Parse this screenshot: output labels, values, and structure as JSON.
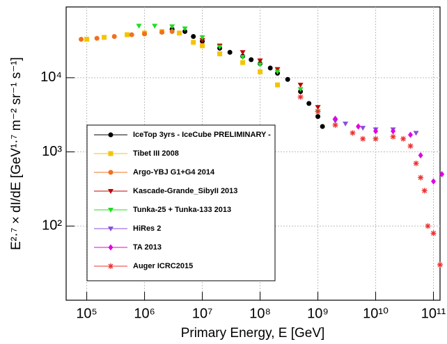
{
  "chart_data": {
    "type": "scatter",
    "x_label": "Primary Energy, E [GeV]",
    "y_label": "E²·⁷ × dI/dE [GeV¹·⁷ m⁻² sr⁻¹ s⁻¹]",
    "log_x": true,
    "log_y": true,
    "grid": true,
    "legend": "lower left",
    "xlim": [
      44000,
      130000000000
    ],
    "ylim": [
      10,
      90000
    ],
    "xticks": [
      {
        "value": 100000,
        "label": "10⁵"
      },
      {
        "value": 1000000,
        "label": "10⁶"
      },
      {
        "value": 10000000,
        "label": "10⁷"
      },
      {
        "value": 100000000,
        "label": "10⁸"
      },
      {
        "value": 1000000000,
        "label": "10⁹"
      },
      {
        "value": 10000000000,
        "label": "10¹⁰"
      },
      {
        "value": 100000000000,
        "label": "10¹¹"
      }
    ],
    "yticks": [
      {
        "value": 100,
        "label": "10²"
      },
      {
        "value": 1000,
        "label": "10³"
      },
      {
        "value": 10000,
        "label": "10⁴"
      }
    ],
    "series": [
      {
        "name": "IceTop 3yrs  - IceCube PRELIMINARY -",
        "color": "#000000",
        "marker": "circle",
        "x": [
          3000000,
          5000000,
          7000000,
          10000000,
          20000000,
          30000000,
          50000000,
          70000000,
          100000000,
          150000000,
          200000000,
          300000000,
          500000000,
          700000000,
          1000000000,
          1200000000
        ],
        "y": [
          45000,
          42000,
          36000,
          31000,
          25000,
          22000,
          19500,
          17500,
          15500,
          13500,
          11500,
          9500,
          6500,
          4500,
          3000,
          2200
        ]
      },
      {
        "name": "Tibet III 2008",
        "color": "#f5c400",
        "marker": "square",
        "x": [
          100000,
          200000,
          500000,
          1000000,
          2000000,
          4000000,
          7000000,
          10000000,
          20000000,
          50000000,
          100000000,
          200000000
        ],
        "y": [
          33000,
          35000,
          38000,
          40000,
          42000,
          40000,
          30000,
          27000,
          21000,
          16000,
          12000,
          8000
        ]
      },
      {
        "name": "Argo-YBJ G1+G4 2014",
        "color": "#f07020",
        "marker": "circle",
        "x": [
          80000,
          150000,
          300000,
          600000,
          1000000,
          2000000,
          3000000
        ],
        "y": [
          33000,
          34000,
          36000,
          38000,
          39000,
          41000,
          42000
        ]
      },
      {
        "name": "Kascade-Grande_SibyII 2013",
        "color": "#c00000",
        "marker": "triangle-down",
        "x": [
          10000000,
          20000000,
          50000000,
          100000000,
          200000000,
          500000000,
          1000000000
        ],
        "y": [
          32000,
          27000,
          22000,
          17000,
          13000,
          8000,
          4000
        ]
      },
      {
        "name": "Tunka-25 + Tunka-133 2013",
        "color": "#22dd22",
        "marker": "triangle-down",
        "x": [
          800000,
          1500000,
          3000000,
          5000000,
          10000000,
          20000000,
          50000000,
          100000000,
          200000000,
          500000000,
          1000000000
        ],
        "y": [
          50000,
          50000,
          49000,
          46000,
          35000,
          26000,
          19000,
          15000,
          12000,
          7000,
          3500
        ]
      },
      {
        "name": "HiRes 2",
        "color": "#8a4fe0",
        "marker": "triangle-down",
        "x": [
          2000000000,
          3000000000,
          6000000000,
          10000000000,
          20000000000,
          50000000000
        ],
        "y": [
          2600,
          2400,
          2100,
          2000,
          2000,
          1800
        ]
      },
      {
        "name": "TA 2013",
        "color": "#e000e0",
        "marker": "diamond",
        "x": [
          2000000000,
          5000000000,
          10000000000,
          20000000000,
          40000000000,
          60000000000,
          100000000000,
          140000000000
        ],
        "y": [
          2800,
          2200,
          1900,
          1900,
          1700,
          900,
          400,
          500
        ]
      },
      {
        "name": "Auger ICRC2015",
        "color": "#ee3030",
        "marker": "asterisk",
        "x": [
          500000000,
          1000000000,
          2000000000,
          4000000000,
          6000000000,
          10000000000,
          20000000000,
          30000000000,
          40000000000,
          50000000000,
          60000000000,
          70000000000,
          80000000000,
          100000000000,
          130000000000
        ],
        "y": [
          5500,
          3500,
          2300,
          1800,
          1500,
          1500,
          1600,
          1500,
          1200,
          700,
          450,
          300,
          100,
          80,
          30
        ]
      }
    ]
  }
}
